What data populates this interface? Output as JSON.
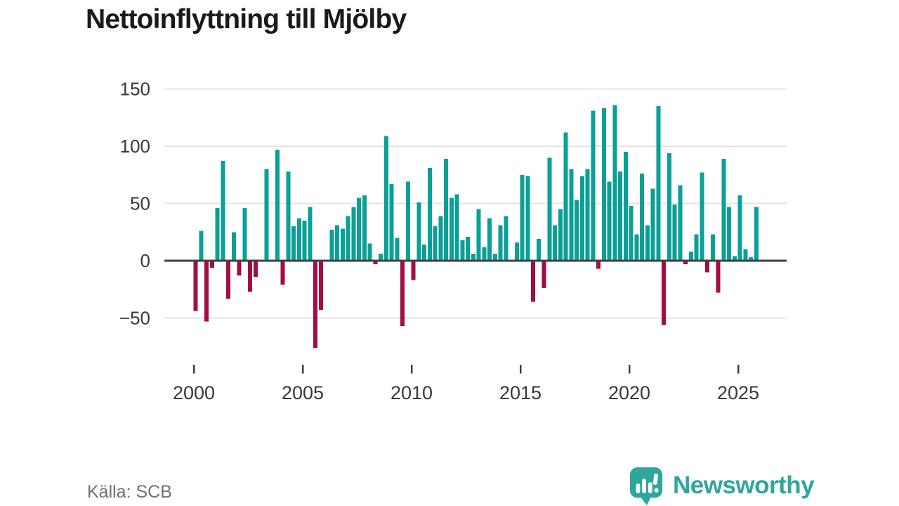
{
  "title": "Nettoinflyttning till Mjölby",
  "source": "Källa: SCB",
  "branding": {
    "name": "Newsworthy",
    "icon": "newsworthy-speech-bubble-bar-chart-icon",
    "color": "#2ea69c"
  },
  "colors": {
    "positive_bar": "#0aa096",
    "negative_bar": "#a30d44",
    "axis_line": "#404040",
    "gridline": "#e5e5e5",
    "tick_label": "#383838",
    "background": "#ffffff"
  },
  "chart_data": {
    "type": "bar",
    "title": "Nettoinflyttning till Mjölby",
    "xlabel": "",
    "ylabel": "",
    "frequency": "quarterly",
    "x_range_years": [
      2000,
      2026
    ],
    "ylim": [
      -88,
      157
    ],
    "grid": "horizontal",
    "legend": "none",
    "xticks": [
      2000,
      2005,
      2010,
      2015,
      2020,
      2025
    ],
    "yticks": [
      150,
      100,
      50,
      0,
      -50
    ],
    "ytick_labels": [
      "150",
      "100",
      "50",
      "0",
      "−50"
    ],
    "positive_color": "#0aa096",
    "negative_color": "#a30d44",
    "series_quarterly": [
      {
        "year": 2000,
        "values": [
          -44,
          26,
          -53,
          -6
        ]
      },
      {
        "year": 2001,
        "values": [
          46,
          87,
          -33,
          25
        ]
      },
      {
        "year": 2002,
        "values": [
          -13,
          46,
          -27,
          -14
        ]
      },
      {
        "year": 2003,
        "values": [
          0,
          80,
          0,
          97
        ]
      },
      {
        "year": 2004,
        "values": [
          -21,
          78,
          30,
          37
        ]
      },
      {
        "year": 2005,
        "values": [
          35,
          47,
          -76,
          -43
        ]
      },
      {
        "year": 2006,
        "values": [
          0,
          27,
          31,
          28
        ]
      },
      {
        "year": 2007,
        "values": [
          39,
          47,
          55,
          57
        ]
      },
      {
        "year": 2008,
        "values": [
          15,
          -3,
          6,
          109
        ]
      },
      {
        "year": 2009,
        "values": [
          67,
          20,
          -57,
          69
        ]
      },
      {
        "year": 2010,
        "values": [
          -17,
          51,
          14,
          81
        ]
      },
      {
        "year": 2011,
        "values": [
          30,
          39,
          89,
          55
        ]
      },
      {
        "year": 2012,
        "values": [
          58,
          18,
          21,
          6
        ]
      },
      {
        "year": 2013,
        "values": [
          45,
          12,
          37,
          6
        ]
      },
      {
        "year": 2014,
        "values": [
          31,
          39,
          0,
          16
        ]
      },
      {
        "year": 2015,
        "values": [
          75,
          74,
          -36,
          19
        ]
      },
      {
        "year": 2016,
        "values": [
          -24,
          90,
          31,
          45
        ]
      },
      {
        "year": 2017,
        "values": [
          112,
          80,
          53,
          74
        ]
      },
      {
        "year": 2018,
        "values": [
          80,
          131,
          -7,
          133
        ]
      },
      {
        "year": 2019,
        "values": [
          69,
          136,
          78,
          95
        ]
      },
      {
        "year": 2020,
        "values": [
          48,
          23,
          76,
          31
        ]
      },
      {
        "year": 2021,
        "values": [
          63,
          135,
          -56,
          94
        ]
      },
      {
        "year": 2022,
        "values": [
          49,
          66,
          -3,
          8
        ]
      },
      {
        "year": 2023,
        "values": [
          23,
          77,
          -10,
          23
        ]
      },
      {
        "year": 2024,
        "values": [
          -28,
          89,
          47,
          4
        ]
      },
      {
        "year": 2025,
        "values": [
          57,
          10,
          3,
          47
        ]
      }
    ]
  }
}
